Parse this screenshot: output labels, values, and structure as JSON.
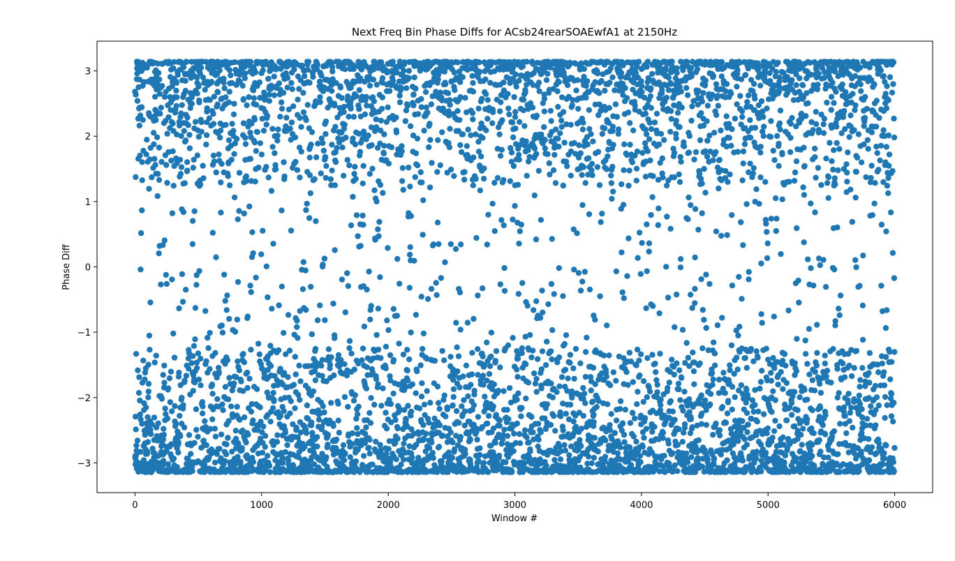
{
  "chart_data": {
    "type": "scatter",
    "title": "Next Freq Bin Phase Diffs for ACsb24rearSOAEwfA1 at 2150Hz",
    "xlabel": "Window #",
    "ylabel": "Phase Diff",
    "xlim": [
      -300,
      6300
    ],
    "ylim": [
      -3.455,
      3.455
    ],
    "xticks": [
      0,
      1000,
      2000,
      3000,
      4000,
      5000,
      6000
    ],
    "xtick_labels": [
      "0",
      "1000",
      "2000",
      "3000",
      "4000",
      "5000",
      "6000"
    ],
    "yticks": [
      -3,
      -2,
      -1,
      0,
      1,
      2,
      3
    ],
    "ytick_labels": [
      "−3",
      "−2",
      "−1",
      "0",
      "1",
      "2",
      "3"
    ],
    "grid": false,
    "marker_color": "#1f77b4",
    "series": [
      {
        "n_points": 6000,
        "x_range": [
          0,
          5999
        ],
        "y_range": [
          -3.14,
          3.14
        ],
        "distribution": "phase differences wrapped to [-pi, pi]; dense concentration near +3 and -3, sparse in the middle"
      }
    ]
  }
}
